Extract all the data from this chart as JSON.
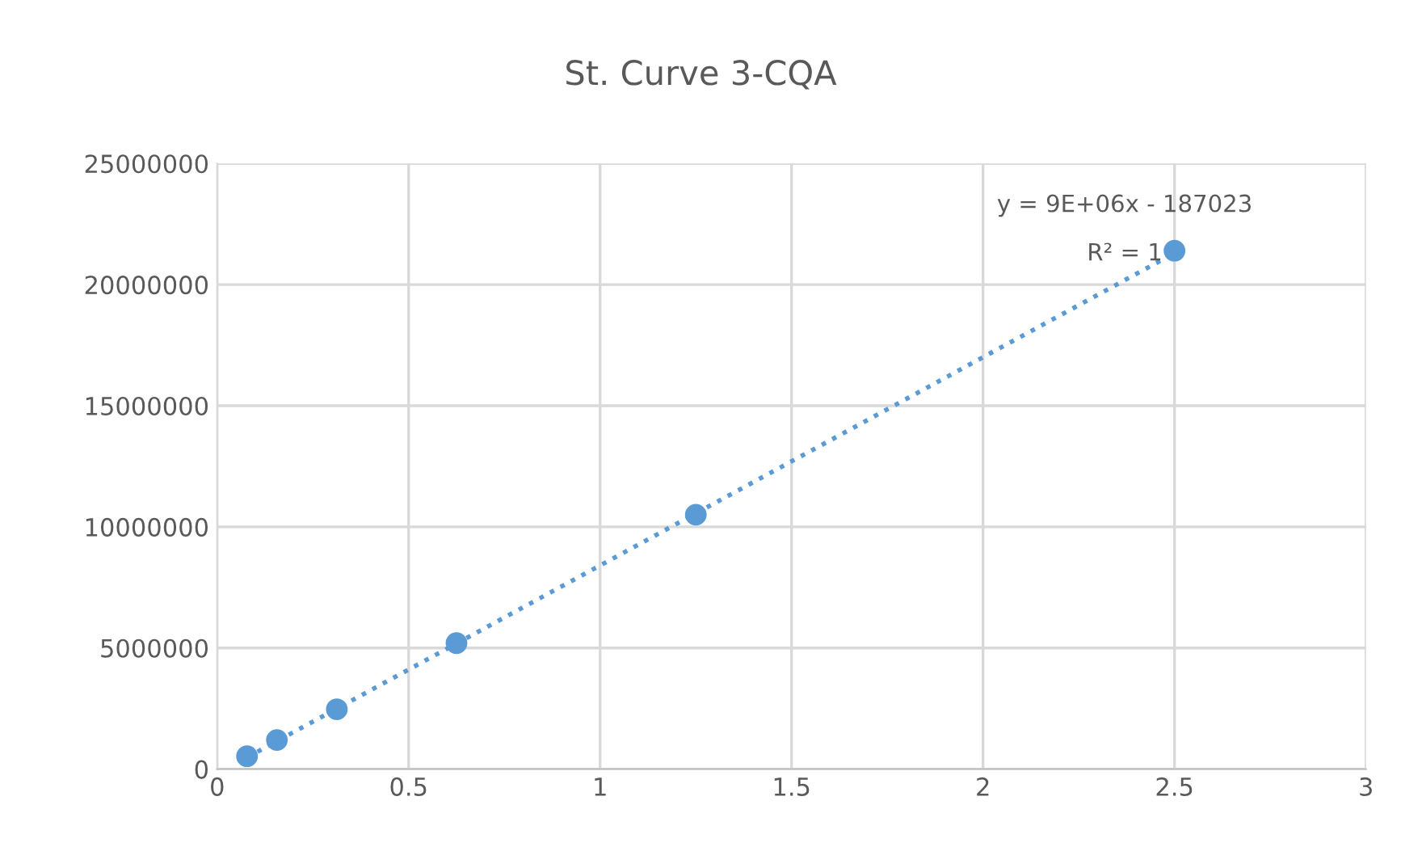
{
  "chart_data": {
    "type": "scatter",
    "title": "St. Curve 3-CQA",
    "series": [
      {
        "color": "#5b9bd5",
        "marker": "circle",
        "x": [
          0.078,
          0.156,
          0.3125,
          0.625,
          1.25,
          2.5
        ],
        "values": [
          530000,
          1200000,
          2470000,
          5200000,
          10500000,
          21400000
        ]
      },
      {
        "type": "line",
        "color": "#5b9bd5",
        "line_style": "dotted",
        "marker": "none",
        "x": [
          0.078,
          2.5
        ],
        "values": [
          480000,
          21300000
        ]
      }
    ],
    "annotations": [
      "y = 9E+06x - 187023",
      "R² = 1"
    ],
    "xlim": [
      0,
      3
    ],
    "xticks": [
      0,
      0.5,
      1,
      1.5,
      2,
      2.5,
      3
    ],
    "ylim": [
      0,
      25000000
    ],
    "yticks": [
      0,
      5000000,
      10000000,
      15000000,
      20000000,
      25000000
    ],
    "grid": true,
    "legend": false
  }
}
